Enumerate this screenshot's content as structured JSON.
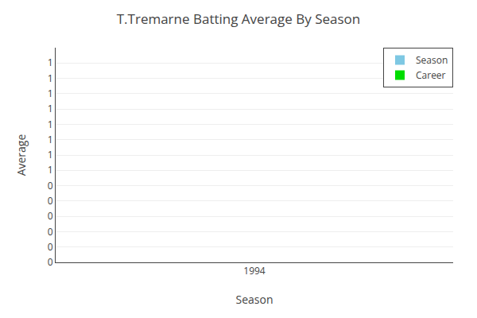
{
  "chart_data": {
    "type": "bar",
    "title": "T.Tremarne Batting Average By Season",
    "x_label": "Season",
    "y_label": "Average",
    "x": [
      1994
    ],
    "series": [
      {
        "name": "Season",
        "color": "#7EC8E3",
        "values": [
          null
        ]
      },
      {
        "name": "Career",
        "color": "#00DD00",
        "values": [
          null
        ]
      }
    ],
    "xlim": [
      1993.5,
      1994.5
    ],
    "xticks": [
      1994
    ],
    "ylim": [
      0,
      1.4
    ],
    "yticks": [
      0,
      {
        "value": 0.1,
        "label": "0"
      },
      {
        "value": 0.2,
        "label": "0"
      },
      {
        "value": 0.3,
        "label": "0"
      },
      {
        "value": 0.4,
        "label": "0"
      },
      {
        "value": 0.5,
        "label": "0"
      },
      {
        "value": 0.6,
        "label": "1"
      },
      {
        "value": 0.7,
        "label": "1"
      },
      {
        "value": 0.8,
        "label": "1"
      },
      {
        "value": 0.9,
        "label": "1"
      },
      1,
      {
        "value": 1.1,
        "label": "1"
      },
      {
        "value": 1.2,
        "label": "1"
      },
      {
        "value": 1.3,
        "label": "1"
      }
    ],
    "grid": true,
    "legend": "upper right"
  }
}
